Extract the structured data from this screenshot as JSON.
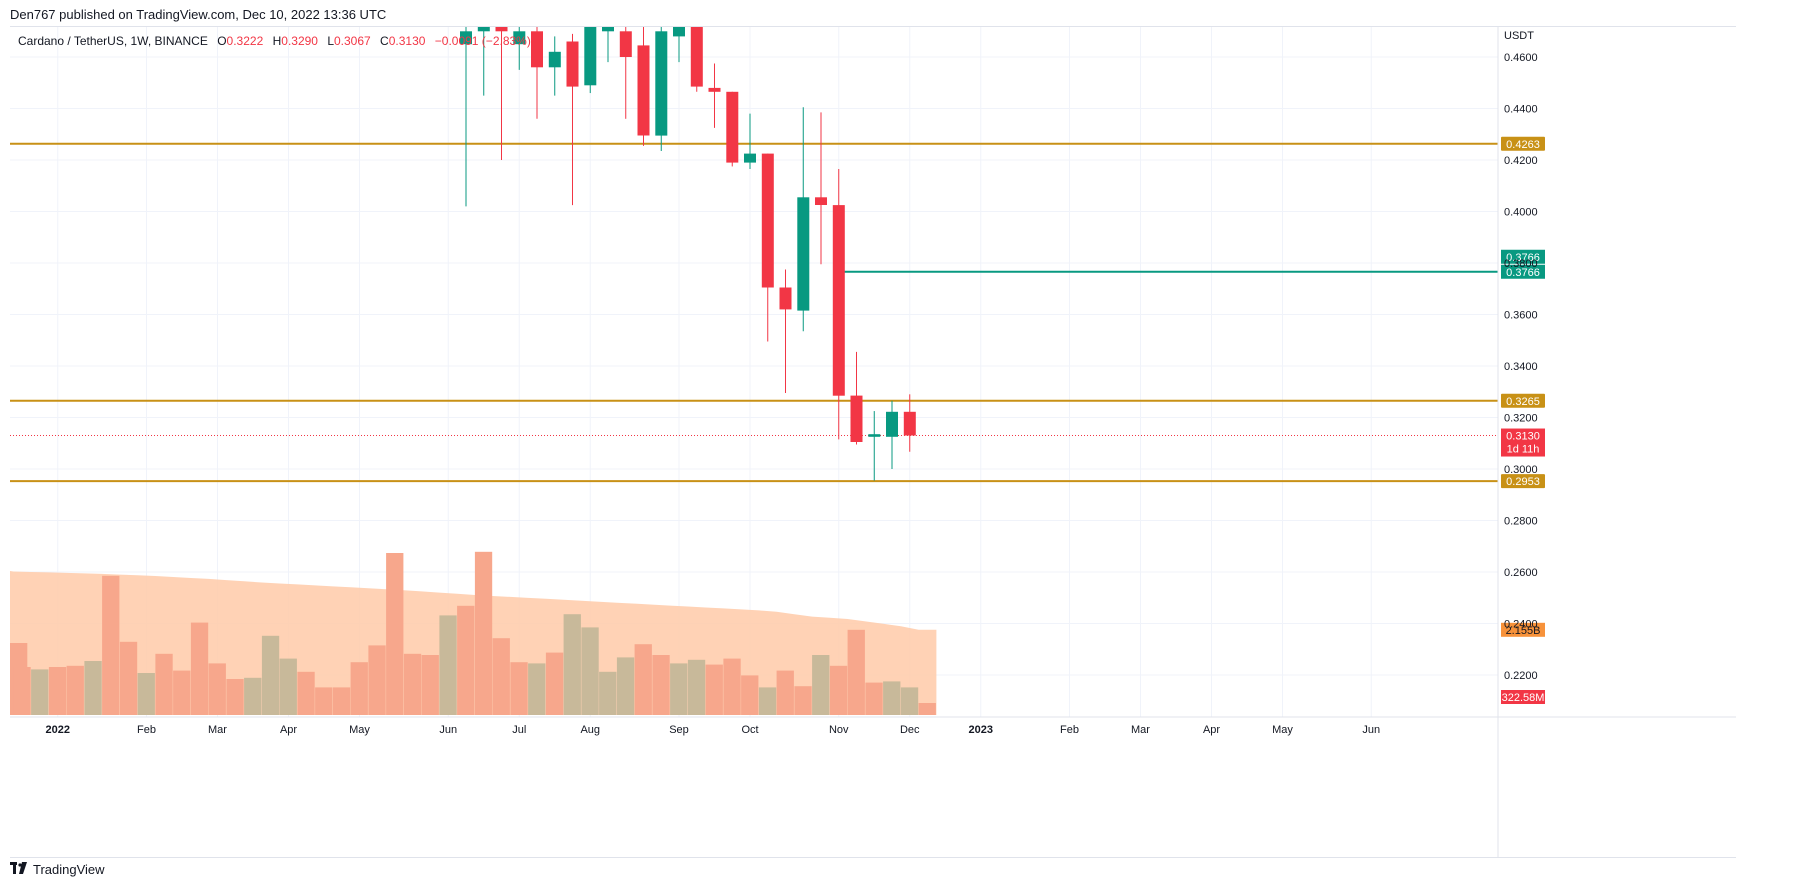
{
  "header": {
    "published": "Den767 published on TradingView.com, Dec 10, 2022 13:36 UTC"
  },
  "symbol": {
    "name": "Cardano / TetherUS, 1W, BINANCE",
    "open_label": "O",
    "open": "0.3222",
    "high_label": "H",
    "high": "0.3290",
    "low_label": "L",
    "low": "0.3067",
    "close_label": "C",
    "close": "0.3130",
    "change": "−0.0091 (−2.83%)"
  },
  "colors": {
    "up": "#089981",
    "down": "#f23645",
    "level": "#c89116",
    "teal_line": "#089981",
    "vol_up": "#c8b99a",
    "vol_down": "#f7a78c",
    "vol_ma_fill": "#ffcaa8",
    "grid": "#f0f3fa"
  },
  "footer": {
    "brand": "TradingView",
    "logo_icon": "tradingview-logo-icon"
  },
  "chart_data": {
    "type": "candlestick",
    "currency": "USDT",
    "y_ticks": [
      0.46,
      0.44,
      0.42,
      0.4,
      0.38,
      0.36,
      0.34,
      0.32,
      0.3,
      0.28,
      0.26,
      0.24,
      0.22
    ],
    "y_tick_labels": [
      "0.4600",
      "0.4400",
      "0.4200",
      "0.4000",
      "0.3800",
      "0.3600",
      "0.3400",
      "0.3200",
      "0.3000",
      "0.2800",
      "0.2600",
      "0.2400",
      "0.2200"
    ],
    "x_ticks": [
      {
        "label": "Dec",
        "week": -3,
        "bold": false
      },
      {
        "label": "2022",
        "week": 1,
        "bold": true
      },
      {
        "label": "Feb",
        "week": 6,
        "bold": false
      },
      {
        "label": "Mar",
        "week": 10,
        "bold": false
      },
      {
        "label": "Apr",
        "week": 14,
        "bold": false
      },
      {
        "label": "May",
        "week": 18,
        "bold": false
      },
      {
        "label": "Jun",
        "week": 23,
        "bold": false
      },
      {
        "label": "Jul",
        "week": 27,
        "bold": false
      },
      {
        "label": "Aug",
        "week": 31,
        "bold": false
      },
      {
        "label": "Sep",
        "week": 36,
        "bold": false
      },
      {
        "label": "Oct",
        "week": 40,
        "bold": false
      },
      {
        "label": "Nov",
        "week": 45,
        "bold": false
      },
      {
        "label": "Dec",
        "week": 49,
        "bold": false
      },
      {
        "label": "2023",
        "week": 53,
        "bold": true
      },
      {
        "label": "Feb",
        "week": 58,
        "bold": false
      },
      {
        "label": "Mar",
        "week": 62,
        "bold": false
      },
      {
        "label": "Apr",
        "week": 66,
        "bold": false
      },
      {
        "label": "May",
        "week": 70,
        "bold": false
      },
      {
        "label": "Jun",
        "week": 75,
        "bold": false
      }
    ],
    "candles": [
      {
        "o": 0.465,
        "h": 0.478,
        "l": 0.402,
        "c": 0.47
      },
      {
        "o": 0.47,
        "h": 0.48,
        "l": 0.445,
        "c": 0.475
      },
      {
        "o": 0.475,
        "h": 0.48,
        "l": 0.42,
        "c": 0.47
      },
      {
        "o": 0.465,
        "h": 0.48,
        "l": 0.455,
        "c": 0.47
      },
      {
        "o": 0.47,
        "h": 0.48,
        "l": 0.436,
        "c": 0.456
      },
      {
        "o": 0.456,
        "h": 0.468,
        "l": 0.445,
        "c": 0.462
      },
      {
        "o": 0.466,
        "h": 0.469,
        "l": 0.4025,
        "c": 0.4485
      },
      {
        "o": 0.449,
        "h": 0.475,
        "l": 0.446,
        "c": 0.474
      },
      {
        "o": 0.47,
        "h": 0.478,
        "l": 0.458,
        "c": 0.475
      },
      {
        "o": 0.47,
        "h": 0.478,
        "l": 0.436,
        "c": 0.46
      },
      {
        "o": 0.4645,
        "h": 0.478,
        "l": 0.4255,
        "c": 0.4295
      },
      {
        "o": 0.4295,
        "h": 0.478,
        "l": 0.4235,
        "c": 0.47
      },
      {
        "o": 0.468,
        "h": 0.478,
        "l": 0.458,
        "c": 0.474
      },
      {
        "o": 0.475,
        "h": 0.478,
        "l": 0.4465,
        "c": 0.4485
      },
      {
        "o": 0.448,
        "h": 0.4575,
        "l": 0.4325,
        "c": 0.4465
      },
      {
        "o": 0.4465,
        "h": 0.4465,
        "l": 0.4175,
        "c": 0.419
      },
      {
        "o": 0.419,
        "h": 0.438,
        "l": 0.4165,
        "c": 0.4225
      },
      {
        "o": 0.4225,
        "h": 0.4225,
        "l": 0.3495,
        "c": 0.3705
      },
      {
        "o": 0.3705,
        "h": 0.3775,
        "l": 0.3295,
        "c": 0.362
      },
      {
        "o": 0.3615,
        "h": 0.4405,
        "l": 0.3535,
        "c": 0.4055
      },
      {
        "o": 0.4055,
        "h": 0.4385,
        "l": 0.3795,
        "c": 0.4025
      },
      {
        "o": 0.4025,
        "h": 0.4165,
        "l": 0.3115,
        "c": 0.3285
      },
      {
        "o": 0.3285,
        "h": 0.3455,
        "l": 0.3095,
        "c": 0.3105
      },
      {
        "o": 0.3125,
        "h": 0.3225,
        "l": 0.2955,
        "c": 0.3135
      },
      {
        "o": 0.3125,
        "h": 0.3265,
        "l": 0.3,
        "c": 0.3222
      },
      {
        "o": 0.3222,
        "h": 0.329,
        "l": 0.3067,
        "c": 0.313
      }
    ],
    "first_candle_week": 24,
    "volume_weeks_start": -4,
    "volume": [
      {
        "v": 0.32,
        "up": false
      },
      {
        "v": 0.43,
        "up": false
      },
      {
        "v": 0.3,
        "up": false
      },
      {
        "v": 0.2,
        "up": false
      },
      {
        "v": 0.19,
        "up": true
      },
      {
        "v": 0.2,
        "up": false
      },
      {
        "v": 0.205,
        "up": false
      },
      {
        "v": 0.225,
        "up": true
      },
      {
        "v": 0.58,
        "up": false
      },
      {
        "v": 0.305,
        "up": false
      },
      {
        "v": 0.175,
        "up": true
      },
      {
        "v": 0.255,
        "up": false
      },
      {
        "v": 0.185,
        "up": false
      },
      {
        "v": 0.385,
        "up": false
      },
      {
        "v": 0.215,
        "up": false
      },
      {
        "v": 0.15,
        "up": false
      },
      {
        "v": 0.155,
        "up": true
      },
      {
        "v": 0.33,
        "up": true
      },
      {
        "v": 0.235,
        "up": true
      },
      {
        "v": 0.18,
        "up": false
      },
      {
        "v": 0.115,
        "up": false
      },
      {
        "v": 0.115,
        "up": false
      },
      {
        "v": 0.22,
        "up": false
      },
      {
        "v": 0.29,
        "up": false
      },
      {
        "v": 0.675,
        "up": false
      },
      {
        "v": 0.255,
        "up": false
      },
      {
        "v": 0.25,
        "up": false
      },
      {
        "v": 0.415,
        "up": true
      },
      {
        "v": 0.455,
        "up": false
      },
      {
        "v": 0.68,
        "up": false
      },
      {
        "v": 0.32,
        "up": false
      },
      {
        "v": 0.22,
        "up": false
      },
      {
        "v": 0.215,
        "up": true
      },
      {
        "v": 0.26,
        "up": false
      },
      {
        "v": 0.42,
        "up": true
      },
      {
        "v": 0.365,
        "up": true
      },
      {
        "v": 0.18,
        "up": true
      },
      {
        "v": 0.24,
        "up": true
      },
      {
        "v": 0.295,
        "up": false
      },
      {
        "v": 0.25,
        "up": false
      },
      {
        "v": 0.215,
        "up": true
      },
      {
        "v": 0.23,
        "up": true
      },
      {
        "v": 0.21,
        "up": false
      },
      {
        "v": 0.235,
        "up": false
      },
      {
        "v": 0.165,
        "up": false
      },
      {
        "v": 0.115,
        "up": true
      },
      {
        "v": 0.185,
        "up": false
      },
      {
        "v": 0.12,
        "up": false
      },
      {
        "v": 0.25,
        "up": true
      },
      {
        "v": 0.205,
        "up": false
      },
      {
        "v": 0.355,
        "up": false
      },
      {
        "v": 0.135,
        "up": false
      },
      {
        "v": 0.14,
        "up": true
      },
      {
        "v": 0.115,
        "up": true
      },
      {
        "v": 0.05,
        "up": false
      }
    ],
    "volume_ma": [
      0.6,
      0.6,
      0.6,
      0.598,
      0.596,
      0.594,
      0.592,
      0.59,
      0.588,
      0.585,
      0.582,
      0.579,
      0.575,
      0.571,
      0.567,
      0.562,
      0.557,
      0.552,
      0.548,
      0.544,
      0.54,
      0.536,
      0.532,
      0.528,
      0.524,
      0.52,
      0.515,
      0.51,
      0.505,
      0.5,
      0.496,
      0.492,
      0.488,
      0.484,
      0.48,
      0.476,
      0.472,
      0.468,
      0.464,
      0.46,
      0.456,
      0.452,
      0.448,
      0.444,
      0.44,
      0.436,
      0.43,
      0.42,
      0.41,
      0.405,
      0.4,
      0.39,
      0.38,
      0.37,
      0.355
    ],
    "volume_labels": {
      "ma": "2.155B",
      "last": "322.58M"
    },
    "levels": [
      {
        "price": 0.4263,
        "label": "0.4263",
        "color": "#c89116"
      },
      {
        "price": 0.3265,
        "label": "0.3265",
        "color": "#c89116"
      },
      {
        "price": 0.2953,
        "label": "0.2953",
        "color": "#c89116"
      }
    ],
    "teal_line": {
      "price": 0.3766,
      "from_week": 45,
      "labels": [
        "0.3766",
        "0.3766"
      ]
    },
    "last_price": {
      "price": 0.313,
      "label": "0.3130",
      "countdown": "1d 11h"
    }
  }
}
